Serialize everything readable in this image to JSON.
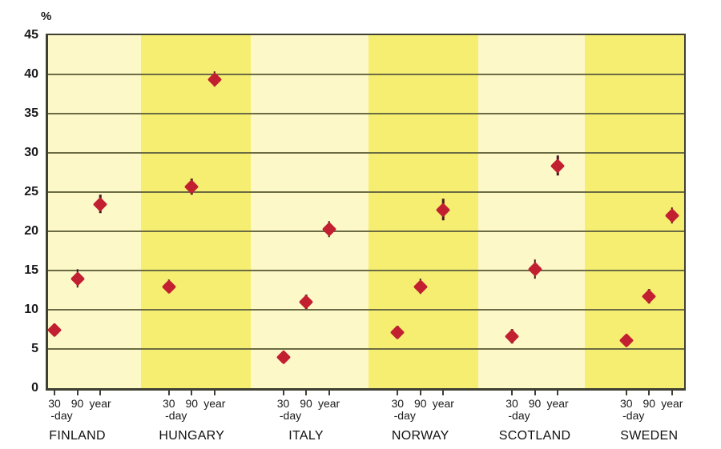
{
  "chart_data": {
    "type": "scatter",
    "marker": "diamond",
    "ylabel": "%",
    "ylim": [
      0,
      45
    ],
    "ytick_interval": 5,
    "yticks": [
      0,
      5,
      10,
      15,
      20,
      25,
      30,
      35,
      40,
      45
    ],
    "grid": "horizontal",
    "legend": "none",
    "x_axis": {
      "period_labels": [
        "30",
        "90",
        "year"
      ],
      "period_sublabel": "-day"
    },
    "groups": [
      {
        "country": "FINLAND",
        "values": [
          7.4,
          14.0,
          23.5
        ],
        "errors": [
          0.8,
          1.2,
          1.2
        ]
      },
      {
        "country": "HUNGARY",
        "values": [
          13.0,
          25.7,
          39.4
        ],
        "errors": [
          0.9,
          1.0,
          1.0
        ]
      },
      {
        "country": "ITALY",
        "values": [
          4.0,
          11.0,
          20.3
        ],
        "errors": [
          0.6,
          0.9,
          1.0
        ]
      },
      {
        "country": "NORWAY",
        "values": [
          7.1,
          13.0,
          22.8
        ],
        "errors": [
          0.8,
          1.0,
          1.4
        ]
      },
      {
        "country": "SCOTLAND",
        "values": [
          6.6,
          15.2,
          28.4
        ],
        "errors": [
          0.9,
          1.2,
          1.3
        ]
      },
      {
        "country": "SWEDEN",
        "values": [
          6.1,
          11.7,
          22.0
        ],
        "errors": [
          0.7,
          0.9,
          1.0
        ]
      }
    ],
    "band_boundaries_frac": [
      0,
      0.1461,
      0.3186,
      0.5038,
      0.6763,
      0.8438,
      1
    ],
    "colors": {
      "band_light": "#FCF8C8",
      "band_dark": "#F6EE71",
      "gridline": "#6B6B44",
      "axis": "#3F3F33",
      "marker": "#C22031",
      "error_bar": "#47191E",
      "text": "#1A1A1A",
      "background": "#FFFFFF"
    }
  }
}
